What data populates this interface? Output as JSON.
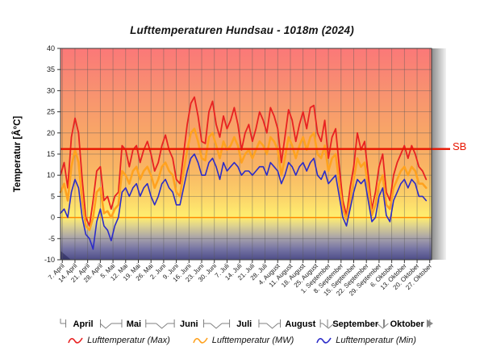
{
  "chart_data": {
    "type": "line",
    "title": "Lufttemperaturen Hundsau - 1018m (2024)",
    "ylabel": "Temperatur [Â°C]",
    "ylim": [
      -10,
      40
    ],
    "ytick_step": 5,
    "grid": true,
    "legend_position": "bottom",
    "x_domain_days": 205,
    "x_tick_labels": [
      "7. April",
      "14. April",
      "21. April",
      "28. April",
      "5. Mai",
      "12. Mai",
      "19. Mai",
      "26. Mai",
      "2. Juni",
      "9. Juni",
      "16. Juni",
      "23. Juni",
      "30. Juni",
      "7. Juli",
      "14. Juli",
      "21. Juli",
      "28. Juli",
      "4. August",
      "11. August",
      "18. August",
      "25. August",
      "1. September",
      "8. September",
      "15. September",
      "22. September",
      "29. September",
      "6. Oktober",
      "13. Oktober",
      "20. Oktober",
      "27. Oktober"
    ],
    "x_first_tick_day": 1,
    "x_tick_interval_days": 7,
    "months": [
      {
        "label": "April",
        "start_day": 0,
        "end_day": 25
      },
      {
        "label": "Mai",
        "start_day": 25,
        "end_day": 56
      },
      {
        "label": "Juni",
        "start_day": 56,
        "end_day": 86
      },
      {
        "label": "Juli",
        "start_day": 86,
        "end_day": 117
      },
      {
        "label": "August",
        "start_day": 117,
        "end_day": 148
      },
      {
        "label": "September",
        "start_day": 148,
        "end_day": 178
      },
      {
        "label": "Oktober",
        "start_day": 178,
        "end_day": 205
      }
    ],
    "series_step_days": 2,
    "series": [
      {
        "name": "Lufttemperatur (Max)",
        "color": "#e82222",
        "width": 1.8,
        "values": [
          10,
          13,
          7,
          19,
          23.5,
          20,
          9,
          0,
          -2,
          4,
          11,
          12,
          4,
          5,
          2,
          5,
          6,
          17,
          16,
          12,
          16,
          17,
          13,
          16,
          18,
          15,
          11,
          13,
          17,
          19.5,
          16,
          14,
          9,
          8,
          15,
          22,
          27,
          28.5,
          24,
          18,
          17.5,
          25,
          27.5,
          22,
          19,
          24,
          21,
          23,
          26,
          22,
          16,
          20,
          22,
          18,
          21,
          25,
          23,
          20,
          26,
          24,
          21,
          13,
          19,
          25.5,
          23,
          18,
          22,
          25,
          21,
          26,
          26.5,
          20,
          18,
          23,
          14,
          19,
          21,
          12,
          4,
          0.5,
          7,
          12,
          20,
          16,
          18,
          10,
          2,
          6,
          12,
          15,
          6,
          4,
          10,
          13,
          15,
          17,
          14,
          17,
          15,
          12,
          11,
          9
        ]
      },
      {
        "name": "Lufttemperatur (MW)",
        "color": "#ffa21f",
        "width": 2.6,
        "values": [
          6,
          8,
          4,
          12,
          16,
          13,
          4,
          -2,
          -3,
          0,
          6,
          7,
          1,
          1.5,
          0,
          2,
          3,
          11,
          10,
          8,
          11,
          12,
          9,
          11,
          12,
          10,
          7,
          9,
          12,
          13,
          11,
          10,
          6,
          5,
          11,
          16,
          20,
          21,
          18,
          14,
          13.5,
          19,
          20,
          17,
          14,
          18,
          16,
          17,
          19,
          17,
          13,
          15,
          16,
          14,
          16,
          18,
          17,
          15,
          19,
          18,
          16,
          10,
          14,
          19,
          17,
          14,
          17,
          19,
          16,
          19,
          20,
          15,
          14,
          17,
          11,
          14,
          15,
          8,
          2,
          -0.5,
          4,
          9,
          14,
          12,
          13,
          7,
          0.5,
          3,
          8,
          10,
          3,
          2,
          7,
          9,
          11,
          12,
          10,
          12,
          11,
          8,
          8,
          7
        ]
      },
      {
        "name": "Lufttemperatur (Min)",
        "color": "#2c2cc8",
        "width": 1.6,
        "values": [
          1,
          2,
          0,
          6,
          9,
          7,
          0,
          -4,
          -5,
          -7.5,
          -1,
          2,
          -2,
          -3,
          -5.5,
          -2,
          0,
          6,
          7,
          5,
          7,
          8,
          5,
          7,
          8,
          5,
          3,
          5,
          8,
          9,
          7,
          6,
          3,
          3,
          7,
          11,
          14,
          15,
          13,
          10,
          10,
          13,
          14,
          12,
          9,
          13,
          11,
          12,
          13,
          12,
          10,
          11,
          11,
          10,
          11,
          12,
          12,
          10,
          13,
          12,
          11,
          8,
          10,
          13,
          12,
          10,
          12,
          13,
          11,
          13,
          14,
          10,
          9,
          11,
          8,
          9,
          10,
          5,
          0,
          -2,
          2,
          6,
          9,
          8,
          9,
          4,
          -1,
          0,
          5,
          7,
          0.5,
          -1,
          4,
          6,
          8,
          9,
          7,
          9,
          8,
          5,
          5,
          4
        ]
      }
    ],
    "sb_line": {
      "label": "SB",
      "value": 16.2,
      "color": "#e81500"
    },
    "zero_line": {
      "value": 0,
      "color": "#ff8a00"
    },
    "background_gradient": [
      {
        "offset": 0.0,
        "color": "#fb7878"
      },
      {
        "offset": 0.2,
        "color": "#f89170"
      },
      {
        "offset": 0.4,
        "color": "#f8a667"
      },
      {
        "offset": 0.56,
        "color": "#f9b464"
      },
      {
        "offset": 0.68,
        "color": "#fbcc68"
      },
      {
        "offset": 0.78,
        "color": "#feea6e"
      },
      {
        "offset": 0.8,
        "color": "#ffee70"
      },
      {
        "offset": 0.84,
        "color": "#dcd18f"
      },
      {
        "offset": 0.9,
        "color": "#a5a0ab"
      },
      {
        "offset": 0.95,
        "color": "#7573a4"
      },
      {
        "offset": 1.0,
        "color": "#4d4d87"
      }
    ],
    "grid_color": "#5a5a5a",
    "wall_gradient": [
      "#8c8c8c",
      "#f2f2f2"
    ],
    "month_axis_color": "#808080",
    "next_arrow_color": "#888888"
  }
}
